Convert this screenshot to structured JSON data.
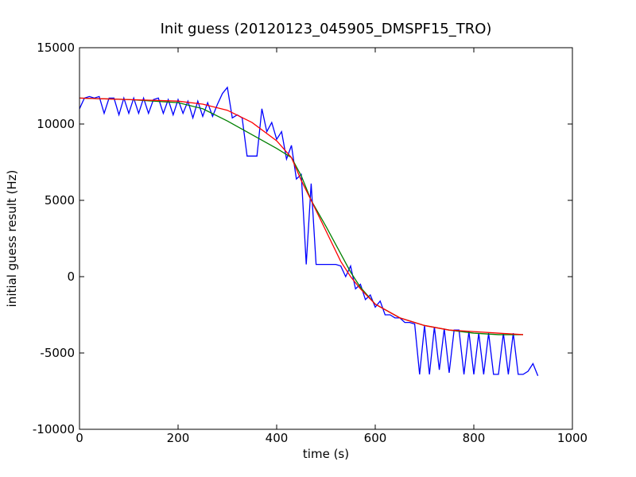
{
  "chart_data": {
    "type": "line",
    "title": "Init guess (20120123_045905_DMSPF15_TRO)",
    "x_label": "time (s)",
    "y_label": "initial guess result (Hz)",
    "xlim": [
      0,
      1000
    ],
    "ylim": [
      -10000,
      15000
    ],
    "xticks": [
      0,
      200,
      400,
      600,
      800,
      1000
    ],
    "yticks": [
      -10000,
      -5000,
      0,
      5000,
      10000,
      15000
    ],
    "series": [
      {
        "color": "#0000ff",
        "x": [
          0,
          10,
          20,
          30,
          40,
          50,
          60,
          70,
          80,
          90,
          100,
          110,
          120,
          130,
          140,
          150,
          160,
          170,
          180,
          190,
          200,
          210,
          220,
          230,
          240,
          250,
          260,
          270,
          280,
          290,
          300,
          310,
          320,
          330,
          340,
          350,
          360,
          370,
          380,
          390,
          400,
          410,
          420,
          430,
          440,
          450,
          460,
          470,
          480,
          490,
          500,
          510,
          520,
          530,
          540,
          550,
          560,
          570,
          580,
          590,
          600,
          610,
          620,
          630,
          640,
          650,
          660,
          670,
          680,
          690,
          700,
          710,
          720,
          730,
          740,
          750,
          760,
          770,
          780,
          790,
          800,
          810,
          820,
          830,
          840,
          850,
          860,
          870,
          880,
          890,
          900,
          910,
          920,
          930
        ],
        "values": [
          11000,
          11700,
          11800,
          11700,
          11800,
          10700,
          11700,
          11700,
          10600,
          11700,
          10700,
          11700,
          10700,
          11700,
          10700,
          11600,
          11700,
          10700,
          11600,
          10600,
          11600,
          10700,
          11500,
          10400,
          11500,
          10500,
          11400,
          10500,
          11300,
          12000,
          12400,
          10400,
          10600,
          10400,
          7900,
          7900,
          7900,
          11000,
          9500,
          10100,
          9000,
          9500,
          7700,
          8600,
          6400,
          6700,
          800,
          6100,
          800,
          800,
          800,
          800,
          800,
          700,
          0,
          700,
          -800,
          -500,
          -1500,
          -1200,
          -2000,
          -1600,
          -2500,
          -2500,
          -2700,
          -2700,
          -3000,
          -3000,
          -3100,
          -6400,
          -3200,
          -6400,
          -3300,
          -6100,
          -3400,
          -6300,
          -3500,
          -3500,
          -6400,
          -3600,
          -6400,
          -3700,
          -6400,
          -3700,
          -6400,
          -6400,
          -3700,
          -6400,
          -3700,
          -6400,
          -6400,
          -6200,
          -5700,
          -6500
        ]
      },
      {
        "color": "#008000",
        "x": [
          0,
          100,
          200,
          250,
          300,
          350,
          400,
          430,
          450,
          470,
          500,
          530,
          550,
          570,
          600,
          650,
          700,
          750,
          800,
          850,
          900
        ],
        "values": [
          11700,
          11600,
          11400,
          11000,
          10200,
          9300,
          8400,
          7800,
          6600,
          5000,
          3300,
          1500,
          300,
          -700,
          -1800,
          -2700,
          -3200,
          -3500,
          -3700,
          -3800,
          -3800
        ]
      },
      {
        "color": "#ff0000",
        "x": [
          0,
          100,
          200,
          250,
          300,
          350,
          400,
          430,
          450,
          470,
          500,
          530,
          550,
          570,
          600,
          650,
          700,
          750,
          800,
          850,
          900
        ],
        "values": [
          11700,
          11600,
          11500,
          11300,
          10900,
          10100,
          8900,
          7800,
          6300,
          5000,
          3000,
          1000,
          0,
          -800,
          -1800,
          -2700,
          -3200,
          -3500,
          -3600,
          -3700,
          -3800
        ]
      }
    ]
  }
}
